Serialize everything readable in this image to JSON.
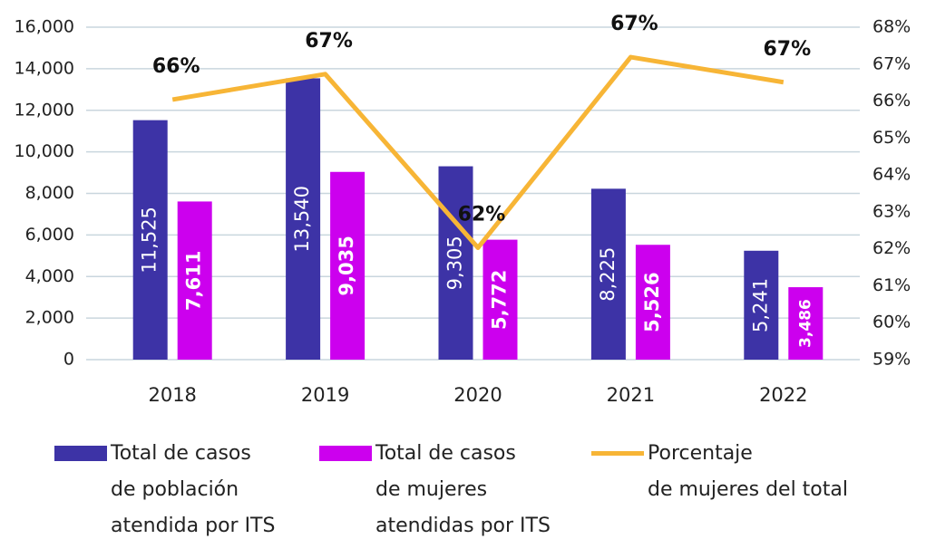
{
  "chart_data": {
    "type": "bar",
    "categories": [
      "2018",
      "2019",
      "2020",
      "2021",
      "2022"
    ],
    "series": [
      {
        "name": "Total de casos\nde población\natendida por ITS",
        "color": "#3d33a6",
        "values": [
          11525,
          13540,
          9305,
          8225,
          5241
        ],
        "value_labels": [
          "11,525",
          "13,540",
          "9,305",
          "8,225",
          "5,241"
        ]
      },
      {
        "name": "Total de casos\nde mujeres\natendidas por ITS",
        "color": "#cc00ee",
        "values": [
          7611,
          9035,
          5772,
          5526,
          3486
        ],
        "value_labels": [
          "7,611",
          "9,035",
          "5,772",
          "5,526",
          "3,486"
        ]
      },
      {
        "name": "Porcentaje\nde mujeres del total",
        "color": "#f7b536",
        "type": "line",
        "axis": "y2",
        "values": [
          66.04,
          66.73,
          62.03,
          67.19,
          66.51
        ],
        "value_labels": [
          "66%",
          "67%",
          "62%",
          "67%",
          "67%"
        ]
      }
    ],
    "ylim": [
      0,
      16000
    ],
    "yticks": [
      0,
      {
        "value": 2000,
        "label": "2,000"
      },
      {
        "value": 4000,
        "label": "4,000"
      },
      {
        "value": 6000,
        "label": "6,000"
      },
      {
        "value": 8000,
        "label": "8,000"
      },
      {
        "value": 10000,
        "label": "10,000"
      },
      {
        "value": 12000,
        "label": "12,000"
      },
      {
        "value": 14000,
        "label": "14,000"
      },
      {
        "value": 16000,
        "label": "16,000"
      }
    ],
    "y2lim": [
      59,
      68
    ],
    "y2ticks": [
      {
        "value": 59,
        "label": "59%"
      },
      {
        "value": 60,
        "label": "60%"
      },
      {
        "value": 61,
        "label": "61%"
      },
      {
        "value": 62,
        "label": "62%"
      },
      {
        "value": 63,
        "label": "63%"
      },
      {
        "value": 64,
        "label": "64%"
      },
      {
        "value": 65,
        "label": "65%"
      },
      {
        "value": 66,
        "label": "66%"
      },
      {
        "value": 67,
        "label": "67%"
      },
      {
        "value": 68,
        "label": "68%"
      }
    ],
    "grid": true,
    "legend": "bottom"
  }
}
